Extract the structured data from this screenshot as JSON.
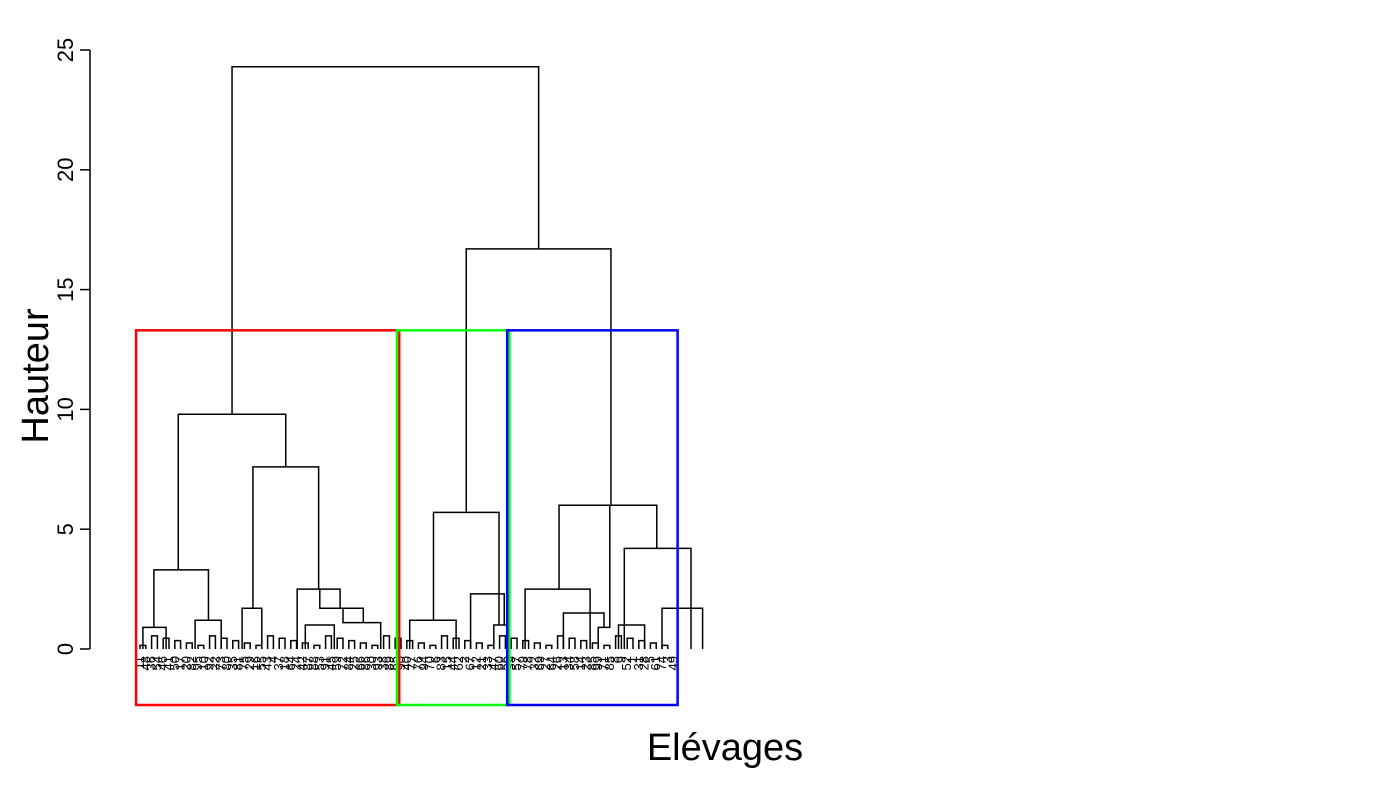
{
  "chart_data": {
    "type": "dendrogram",
    "title": "",
    "xlabel": "Elévages",
    "ylabel": "Hauteur",
    "ylim": [
      0,
      25
    ],
    "yticks": [
      "0",
      "5",
      "10",
      "15",
      "20",
      "25"
    ],
    "cut_height": 13.3,
    "leaves": [
      "11",
      "48",
      "36",
      "54",
      "46",
      "41",
      "50",
      "17",
      "20",
      "82",
      "95",
      "10",
      "92",
      "22",
      "73",
      "80",
      "35",
      "81",
      "75",
      "29",
      "16",
      "55",
      "43",
      "4",
      "37",
      "18",
      "64",
      "24",
      "42",
      "87",
      "88",
      "53",
      "91",
      "45",
      "59",
      "72",
      "84",
      "25",
      "66",
      "86",
      "30",
      "93",
      "38",
      "89",
      "65",
      "90",
      "40",
      "77",
      "76",
      "94",
      "70",
      "6",
      "83",
      "15",
      "44",
      "62",
      "2",
      "67",
      "12",
      "21",
      "33",
      "47",
      "60",
      "56",
      "39",
      "57",
      "79",
      "78",
      "32",
      "69",
      "27",
      "64",
      "26",
      "13",
      "34",
      "58",
      "14",
      "23",
      "85",
      "99",
      "71",
      "85",
      "8",
      "9",
      "52",
      "1",
      "31",
      "28",
      "5",
      "61",
      "74",
      "3",
      "49"
    ],
    "clusters": [
      {
        "color": "#ff0000",
        "first_leaf": 0,
        "last_leaf": 44
      },
      {
        "color": "#00ff00",
        "first_leaf": 45,
        "last_leaf": 63
      },
      {
        "color": "#0000ff",
        "first_leaf": 64,
        "last_leaf": 92
      }
    ],
    "merges": [
      {
        "height": 24.3,
        "left_x": 15.87,
        "right_x": 68.73
      },
      {
        "height": 16.7,
        "left_x": 56.25,
        "right_x": 81.2
      },
      {
        "height": 9.8,
        "left_x": 6.6,
        "right_x": 25.13
      },
      {
        "height": 7.6,
        "left_x": 19.47,
        "right_x": 30.8
      },
      {
        "height": 5.7,
        "left_x": 50.6,
        "right_x": 61.9
      },
      {
        "height": 6.0,
        "left_x": 72.25,
        "right_x": 89.1
      },
      {
        "height": 4.2,
        "left_x": 83.5,
        "right_x": 95.0
      },
      {
        "height": 3.3,
        "left_x": 2.4,
        "right_x": 11.8
      },
      {
        "height": 2.5,
        "left_x": 27.1,
        "right_x": 34.5
      },
      {
        "height": 2.5,
        "left_x": 66.4,
        "right_x": 77.6
      },
      {
        "height": 2.3,
        "left_x": 57.0,
        "right_x": 62.8
      },
      {
        "height": 1.7,
        "left_x": 17.6,
        "right_x": 21.0
      },
      {
        "height": 1.7,
        "left_x": 31.0,
        "right_x": 38.5
      },
      {
        "height": 1.7,
        "left_x": 90.0,
        "right_x": 97.0
      },
      {
        "height": 1.5,
        "left_x": 73.0,
        "right_x": 80.0
      },
      {
        "height": 1.2,
        "left_x": 9.5,
        "right_x": 14.0
      },
      {
        "height": 1.2,
        "left_x": 46.5,
        "right_x": 54.5
      },
      {
        "height": 1.1,
        "left_x": 35.0,
        "right_x": 41.5
      },
      {
        "height": 1.0,
        "left_x": 28.5,
        "right_x": 33.5
      },
      {
        "height": 1.0,
        "left_x": 61.0,
        "right_x": 63.5
      },
      {
        "height": 1.0,
        "left_x": 82.5,
        "right_x": 87.0
      },
      {
        "height": 0.9,
        "left_x": 0.5,
        "right_x": 4.5
      },
      {
        "height": 0.9,
        "left_x": 79.0,
        "right_x": 81.0
      }
    ]
  }
}
